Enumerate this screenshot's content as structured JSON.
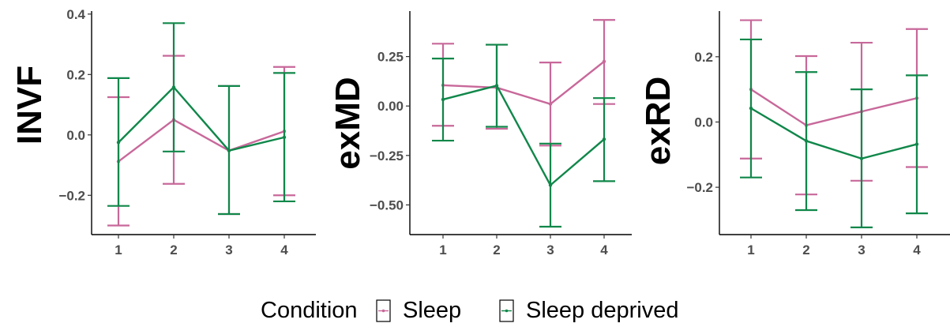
{
  "colors": {
    "sleep": "#c8689a",
    "sleep_deprived": "#10874a",
    "axis": "#000000",
    "tick_text": "#4d4d4d"
  },
  "legend": {
    "title": "Condition",
    "entries": [
      "Sleep",
      "Sleep deprived"
    ]
  },
  "chart_data": [
    {
      "type": "line",
      "ylabel": "INVF",
      "xlabel": "",
      "categories": [
        "1",
        "2",
        "3",
        "4"
      ],
      "ylim": [
        -0.33,
        0.41
      ],
      "yticks": [
        0.4,
        0.2,
        0.0,
        -0.2
      ],
      "ytick_labels": [
        "0.4",
        "0.2",
        "0.0",
        "−0.2"
      ],
      "series": [
        {
          "name": "Sleep",
          "values": [
            -0.088,
            0.05,
            -0.052,
            0.012
          ],
          "lower": [
            -0.3,
            -0.162,
            -0.262,
            -0.2
          ],
          "upper": [
            0.125,
            0.262,
            0.162,
            0.225
          ]
        },
        {
          "name": "Sleep deprived",
          "values": [
            -0.025,
            0.158,
            -0.052,
            -0.008
          ],
          "lower": [
            -0.235,
            -0.055,
            -0.262,
            -0.22
          ],
          "upper": [
            0.188,
            0.37,
            0.162,
            0.205
          ]
        }
      ]
    },
    {
      "type": "line",
      "ylabel": "exMD",
      "xlabel": "",
      "categories": [
        "1",
        "2",
        "3",
        "4"
      ],
      "ylim": [
        -0.65,
        0.48
      ],
      "yticks": [
        0.25,
        0.0,
        -0.25,
        -0.5
      ],
      "ytick_labels": [
        "0.25",
        "0.00",
        "−0.25",
        "−0.50"
      ],
      "series": [
        {
          "name": "Sleep",
          "values": [
            0.105,
            0.093,
            0.01,
            0.225
          ],
          "lower": [
            -0.1,
            -0.115,
            -0.2,
            0.01
          ],
          "upper": [
            0.315,
            0.31,
            0.22,
            0.435
          ]
        },
        {
          "name": "Sleep deprived",
          "values": [
            0.033,
            0.103,
            -0.4,
            -0.168
          ],
          "lower": [
            -0.175,
            -0.105,
            -0.61,
            -0.38
          ],
          "upper": [
            0.24,
            0.31,
            -0.19,
            0.04
          ]
        }
      ]
    },
    {
      "type": "line",
      "ylabel": "exRD",
      "xlabel": "",
      "categories": [
        "1",
        "2",
        "3",
        "4"
      ],
      "ylim": [
        -0.345,
        0.34
      ],
      "yticks": [
        0.2,
        0.0,
        -0.2
      ],
      "ytick_labels": [
        "0.2",
        "0.0",
        "−0.2"
      ],
      "series": [
        {
          "name": "Sleep",
          "values": [
            0.1,
            -0.01,
            0.032,
            0.073
          ],
          "lower": [
            -0.112,
            -0.222,
            -0.18,
            -0.138
          ],
          "upper": [
            0.312,
            0.202,
            0.243,
            0.285
          ]
        },
        {
          "name": "Sleep deprived",
          "values": [
            0.042,
            -0.058,
            -0.112,
            -0.068
          ],
          "lower": [
            -0.17,
            -0.27,
            -0.323,
            -0.28
          ],
          "upper": [
            0.253,
            0.153,
            0.1,
            0.143
          ]
        }
      ]
    }
  ]
}
